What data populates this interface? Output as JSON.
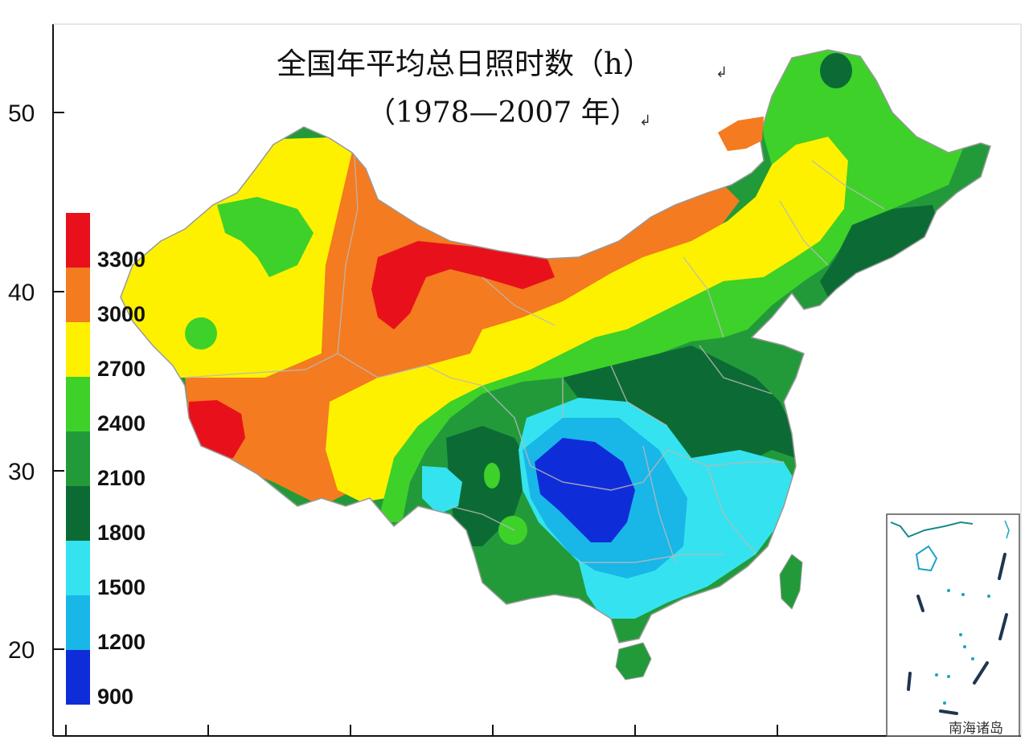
{
  "title": {
    "line1": "全国年平均总日照时数（h）",
    "line2": "（1978—2007 年）"
  },
  "axis": {
    "y_ticks": [
      "50",
      "40",
      "30",
      "20"
    ],
    "x_tick_count": 7
  },
  "legend": {
    "labels": [
      "3300",
      "3000",
      "2700",
      "2400",
      "2100",
      "1800",
      "1500",
      "1200",
      "900"
    ],
    "colors": [
      "#e8111b",
      "#f47b20",
      "#fef100",
      "#3ed12a",
      "#229a3a",
      "#0c6b35",
      "#34e3ef",
      "#19b6e8",
      "#0f2cd9"
    ]
  },
  "inset": {
    "label": "南海诸岛"
  },
  "map_colors": {
    "red": "#e8111b",
    "orange": "#f47b20",
    "yellow": "#fef100",
    "light_green": "#3ed12a",
    "mid_green": "#229a3a",
    "dark_green": "#0c6b35",
    "cyan": "#34e3ef",
    "sky_blue": "#19b6e8",
    "deep_blue": "#0f2cd9"
  }
}
